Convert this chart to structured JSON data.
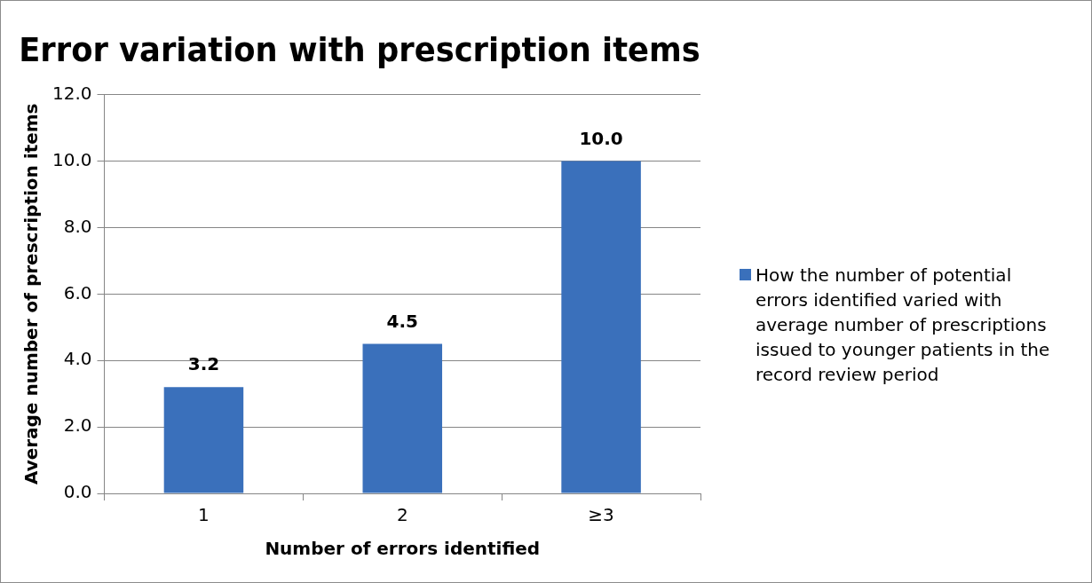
{
  "chart_data": {
    "type": "bar",
    "title": "Error variation with prescription items",
    "xlabel": "Number of errors identified",
    "ylabel": "Average number of prescription items",
    "categories": [
      "1",
      "2",
      "≥3"
    ],
    "series": [
      {
        "name": "How the number of potential errors identified varied with average number of prescriptions issued to younger patients in the record review period",
        "color": "#3a70bb",
        "values": [
          3.2,
          4.5,
          10.0
        ],
        "value_labels": [
          "3.2",
          "4.5",
          "10.0"
        ]
      }
    ],
    "ylim": [
      0,
      12
    ],
    "yticks": [
      {
        "value": 0,
        "label": "0.0"
      },
      {
        "value": 2,
        "label": "2.0"
      },
      {
        "value": 4,
        "label": "4.0"
      },
      {
        "value": 6,
        "label": "6.0"
      },
      {
        "value": 8,
        "label": "8.0"
      },
      {
        "value": 10,
        "label": "10.0"
      },
      {
        "value": 12,
        "label": "12.0"
      }
    ],
    "grid": "y",
    "legend": "right"
  }
}
